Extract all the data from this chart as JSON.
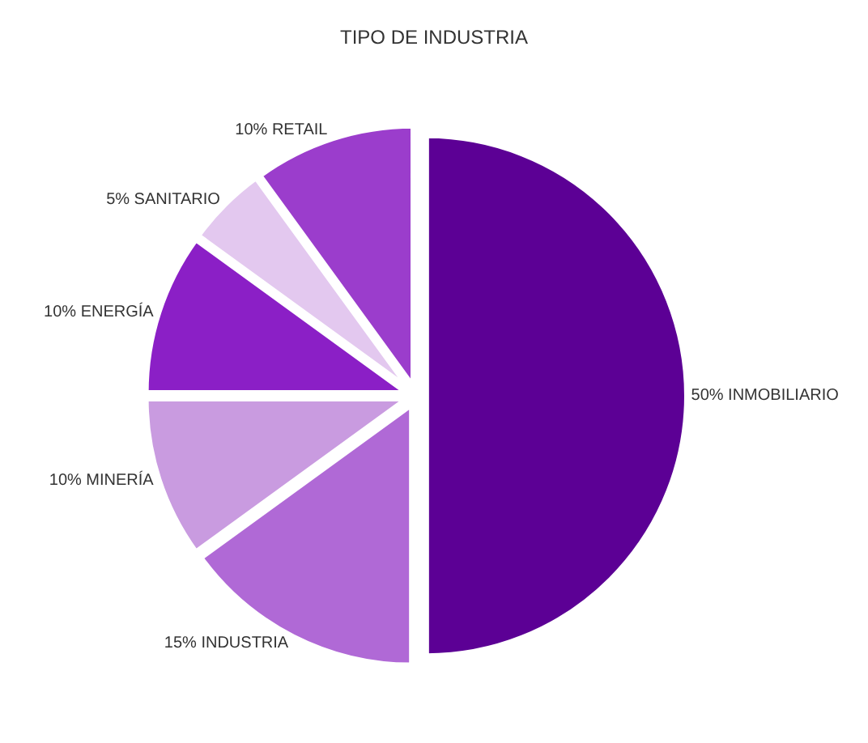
{
  "chart_data": {
    "type": "pie",
    "title": "TIPO DE INDUSTRIA",
    "categories": [
      "INMOBILIARIO",
      "INDUSTRIA",
      "MINERÍA",
      "ENERGÍA",
      "SANITARIO",
      "RETAIL"
    ],
    "values": [
      50,
      15,
      10,
      10,
      5,
      10
    ],
    "colors": [
      "#5c0095",
      "#b069d6",
      "#c99be0",
      "#8b1fc6",
      "#e3c8ef",
      "#9b3dcc"
    ],
    "value_labels": [
      "50%",
      "15%",
      "10%",
      "10%",
      "5%",
      "10%"
    ],
    "legend": false
  }
}
